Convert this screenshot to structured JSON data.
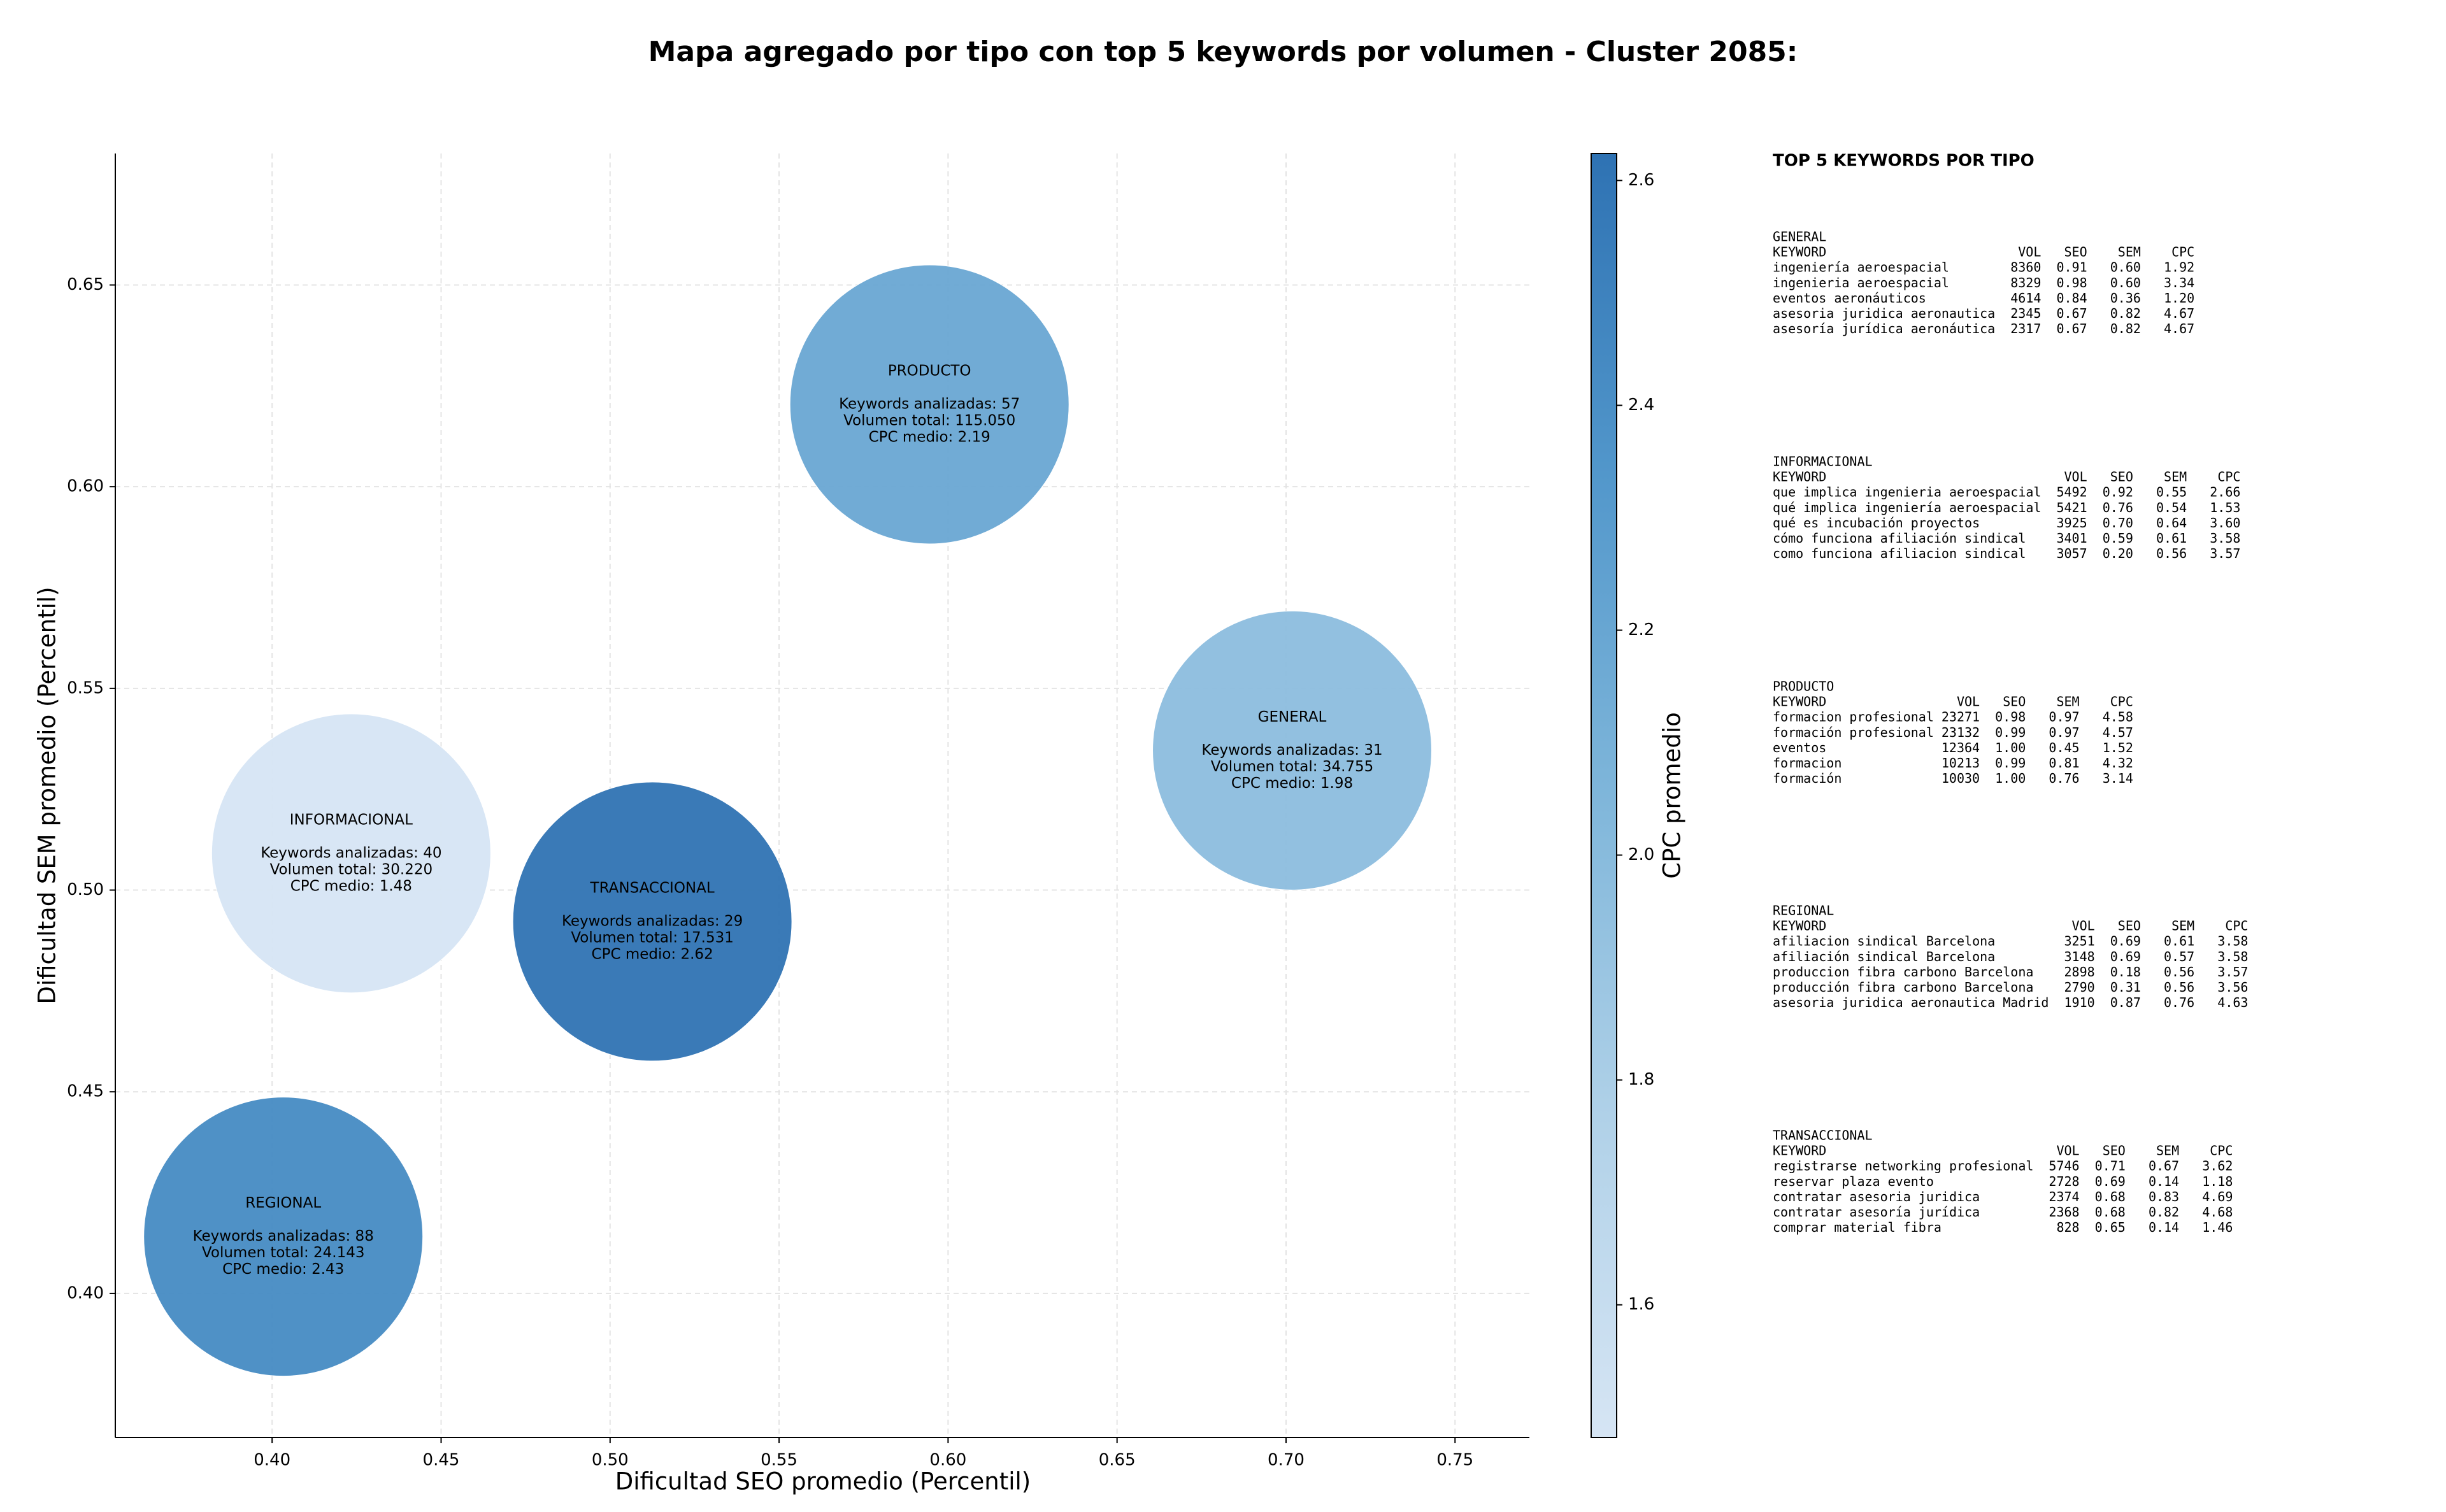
{
  "chart_data": {
    "type": "bubble",
    "title": "Mapa agregado por tipo con top 5 keywords por volumen - Cluster 2085:",
    "xlabel": "Dificultad SEO promedio (Percentil)",
    "ylabel": "Dificultad SEM promedio (Percentil)",
    "xlim": [
      0.3536,
      0.772
    ],
    "ylim": [
      0.3643,
      0.6826
    ],
    "xticks": [
      {
        "value": 0.4,
        "label": "0.40"
      },
      {
        "value": 0.45,
        "label": "0.45"
      },
      {
        "value": 0.5,
        "label": "0.50"
      },
      {
        "value": 0.55,
        "label": "0.55"
      },
      {
        "value": 0.6,
        "label": "0.60"
      },
      {
        "value": 0.65,
        "label": "0.65"
      },
      {
        "value": 0.7,
        "label": "0.70"
      },
      {
        "value": 0.75,
        "label": "0.75"
      }
    ],
    "yticks": [
      {
        "value": 0.4,
        "label": "0.40"
      },
      {
        "value": 0.45,
        "label": "0.45"
      },
      {
        "value": 0.5,
        "label": "0.50"
      },
      {
        "value": 0.55,
        "label": "0.55"
      },
      {
        "value": 0.6,
        "label": "0.60"
      },
      {
        "value": 0.65,
        "label": "0.65"
      }
    ],
    "grid": true,
    "names": [
      "PRODUCTO",
      "GENERAL",
      "INFORMACIONAL",
      "TRANSACCIONAL",
      "REGIONAL"
    ],
    "x": [
      0.5945,
      0.7018,
      0.4234,
      0.5125,
      0.4033
    ],
    "y": [
      0.6204,
      0.5346,
      0.5091,
      0.4922,
      0.4141
    ],
    "color_values": [
      2.19,
      1.98,
      1.48,
      2.62,
      2.43
    ],
    "annotations": [
      [
        "Keywords analizadas: 57",
        "Volumen total: 115.050",
        "CPC medio: 2.19"
      ],
      [
        "Keywords analizadas: 31",
        "Volumen total: 34.755",
        "CPC medio: 1.98"
      ],
      [
        "Keywords analizadas: 40",
        "Volumen total: 30.220",
        "CPC medio: 1.48"
      ],
      [
        "Keywords analizadas: 29",
        "Volumen total: 17.531",
        "CPC medio: 2.62"
      ],
      [
        "Keywords analizadas: 88",
        "Volumen total: 24.143",
        "CPC medio: 2.43"
      ]
    ],
    "colorbar": {
      "label": "CPC promedio",
      "lim": [
        1.482,
        2.624
      ],
      "ticks": [
        1.6,
        1.8,
        {
          "value": 2.0,
          "label": "2.0"
        },
        2.2,
        2.4,
        2.6
      ],
      "colormap": [
        "#d6e5f4",
        "#b0d1e8",
        "#7fb6da",
        "#5297cb",
        "#2e72b3"
      ]
    }
  },
  "keyword_panel": {
    "title": "TOP 5 KEYWORDS POR TIPO",
    "columns": [
      "KEYWORD",
      "VOL",
      "SEO",
      "SEM",
      "CPC"
    ],
    "sections": [
      {
        "name": "GENERAL",
        "rows": [
          [
            "ingeniería aeroespacial",
            "8360",
            "0.91",
            "0.60",
            "1.92"
          ],
          [
            "ingenieria aeroespacial",
            "8329",
            "0.98",
            "0.60",
            "3.34"
          ],
          [
            "eventos aeronáuticos",
            "4614",
            "0.84",
            "0.36",
            "1.20"
          ],
          [
            "asesoria juridica aeronautica",
            "2345",
            "0.67",
            "0.82",
            "4.67"
          ],
          [
            "asesoría jurídica aeronáutica",
            "2317",
            "0.67",
            "0.82",
            "4.67"
          ]
        ]
      },
      {
        "name": "INFORMACIONAL",
        "rows": [
          [
            "que implica ingenieria aeroespacial",
            "5492",
            "0.92",
            "0.55",
            "2.66"
          ],
          [
            "qué implica ingeniería aeroespacial",
            "5421",
            "0.76",
            "0.54",
            "1.53"
          ],
          [
            "qué es incubación proyectos",
            "3925",
            "0.70",
            "0.64",
            "3.60"
          ],
          [
            "cómo funciona afiliación sindical",
            "3401",
            "0.59",
            "0.61",
            "3.58"
          ],
          [
            "como funciona afiliacion sindical",
            "3057",
            "0.20",
            "0.56",
            "3.57"
          ]
        ]
      },
      {
        "name": "PRODUCTO",
        "rows": [
          [
            "formacion profesional",
            "23271",
            "0.98",
            "0.97",
            "4.58"
          ],
          [
            "formación profesional",
            "23132",
            "0.99",
            "0.97",
            "4.57"
          ],
          [
            "eventos",
            "12364",
            "1.00",
            "0.45",
            "1.52"
          ],
          [
            "formacion",
            "10213",
            "0.99",
            "0.81",
            "4.32"
          ],
          [
            "formación",
            "10030",
            "1.00",
            "0.76",
            "3.14"
          ]
        ]
      },
      {
        "name": "REGIONAL",
        "rows": [
          [
            "afiliacion sindical Barcelona",
            "3251",
            "0.69",
            "0.61",
            "3.58"
          ],
          [
            "afiliación sindical Barcelona",
            "3148",
            "0.69",
            "0.57",
            "3.58"
          ],
          [
            "produccion fibra carbono Barcelona",
            "2898",
            "0.18",
            "0.56",
            "3.57"
          ],
          [
            "producción fibra carbono Barcelona",
            "2790",
            "0.31",
            "0.56",
            "3.56"
          ],
          [
            "asesoria juridica aeronautica Madrid",
            "1910",
            "0.87",
            "0.76",
            "4.63"
          ]
        ]
      },
      {
        "name": "TRANSACCIONAL",
        "rows": [
          [
            "registrarse networking profesional",
            "5746",
            "0.71",
            "0.67",
            "3.62"
          ],
          [
            "reservar plaza evento",
            "2728",
            "0.69",
            "0.14",
            "1.18"
          ],
          [
            "contratar asesoria juridica",
            "2374",
            "0.68",
            "0.83",
            "4.69"
          ],
          [
            "contratar asesoría jurídica",
            "2368",
            "0.68",
            "0.82",
            "4.68"
          ],
          [
            "comprar material fibra",
            "828",
            "0.65",
            "0.14",
            "1.46"
          ]
        ]
      }
    ]
  }
}
